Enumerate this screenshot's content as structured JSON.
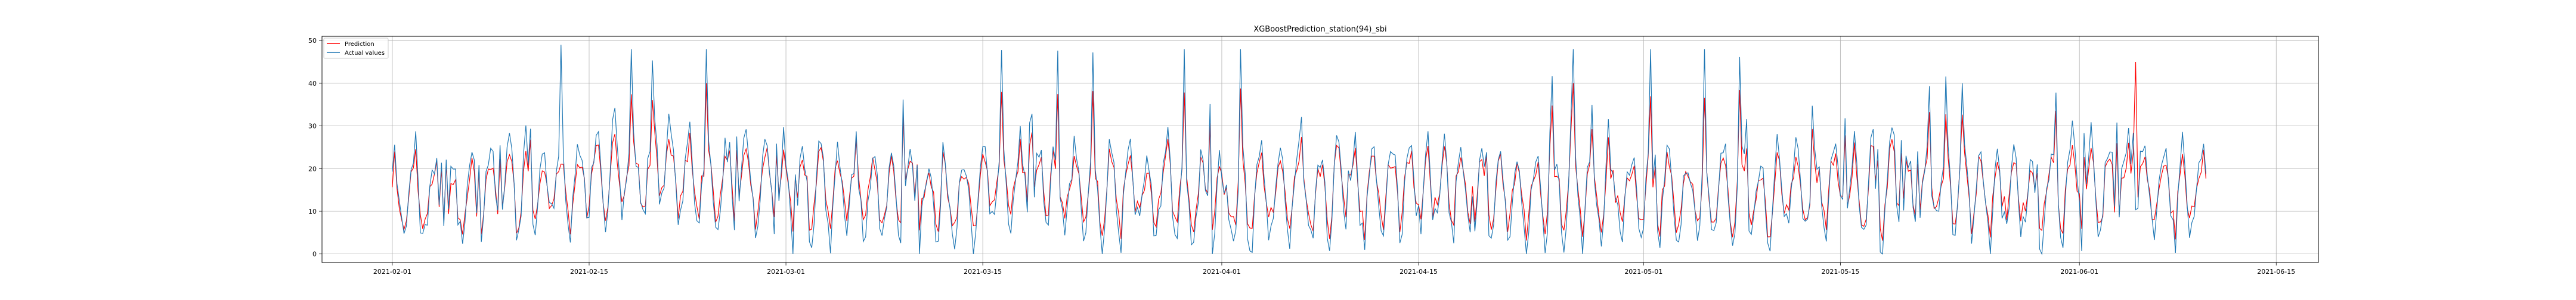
{
  "chart_data": {
    "type": "line",
    "title": "XGBoostPrediction_station(94)_sbi",
    "xlabel": "",
    "ylabel": "",
    "x_start": "2021-02-01",
    "x_end": "2021-06-10",
    "xlim": [
      "2021-01-27",
      "2021-06-18"
    ],
    "ylim": [
      -2,
      51
    ],
    "grid": true,
    "legend": {
      "placement": "top-left",
      "entries": [
        "Prediction",
        "Actual values"
      ]
    },
    "x_ticks": [
      "2021-02-01",
      "2021-02-15",
      "2021-03-01",
      "2021-03-15",
      "2021-04-01",
      "2021-04-15",
      "2021-05-01",
      "2021-05-15",
      "2021-06-01",
      "2021-06-15"
    ],
    "y_ticks": [
      0,
      10,
      20,
      30,
      40,
      50
    ],
    "series": [
      {
        "name": "Prediction",
        "color": "#ff0000",
        "weekly_values": [
          13,
          16,
          19,
          17,
          15,
          14,
          16,
          15,
          14,
          15,
          16,
          14,
          15,
          14,
          15,
          15,
          14,
          16,
          15,
          14
        ],
        "max_point": {
          "x": "2021-06-05",
          "y": 45
        }
      },
      {
        "name": "Actual values",
        "color": "#1f77b4",
        "weekly_values": [
          13,
          17,
          20,
          17,
          14,
          13,
          16,
          15,
          13,
          15,
          16,
          13,
          15,
          14,
          15,
          15,
          13,
          17,
          15,
          13
        ],
        "max_point": {
          "x": "2021-02-13",
          "y": 49
        }
      }
    ]
  }
}
